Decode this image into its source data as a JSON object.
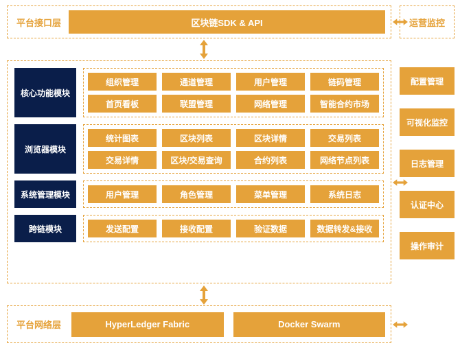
{
  "colors": {
    "orange": "#e5a23a",
    "navy": "#0a1e4a",
    "white": "#ffffff"
  },
  "topLayer": {
    "title": "平台接口层",
    "bar": "区块链SDK & API"
  },
  "rightTitle": "运营监控",
  "rightItems": [
    "配置管理",
    "可视化监控",
    "日志管理",
    "认证中心",
    "操作审计"
  ],
  "sections": [
    {
      "label": "核心功能模块",
      "rows": [
        [
          "组织管理",
          "通道管理",
          "用户管理",
          "链码管理"
        ],
        [
          "首页看板",
          "联盟管理",
          "网络管理",
          "智能合约市场"
        ]
      ]
    },
    {
      "label": "浏览器模块",
      "rows": [
        [
          "统计图表",
          "区块列表",
          "区块详情",
          "交易列表"
        ],
        [
          "交易详情",
          "区块/交易查询",
          "合约列表",
          "网络节点列表"
        ]
      ]
    },
    {
      "label": "系统管理模块",
      "rows": [
        [
          "用户管理",
          "角色管理",
          "菜单管理",
          "系统日志"
        ]
      ]
    },
    {
      "label": "跨链模块",
      "rows": [
        [
          "发送配置",
          "接收配置",
          "验证数据",
          "数据转发&接收"
        ]
      ]
    }
  ],
  "bottomLayer": {
    "title": "平台网络层",
    "items": [
      "HyperLedger Fabric",
      "Docker Swarm"
    ]
  }
}
